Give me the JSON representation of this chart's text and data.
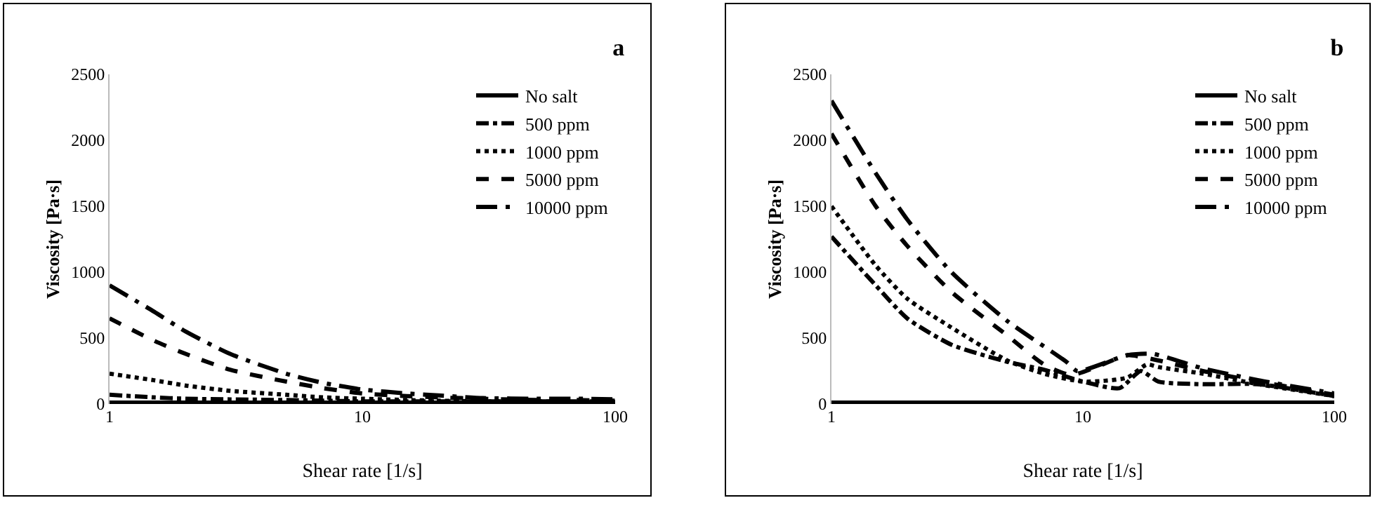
{
  "chart_data": [
    {
      "type": "line",
      "title": "a",
      "xlabel": "Shear rate [1/s]",
      "ylabel": "Viscosity [Pa·s]",
      "log": "x",
      "xlim": [
        1,
        100
      ],
      "xticks": [
        1,
        10,
        100
      ],
      "ylim": [
        0,
        2500
      ],
      "yticks": [
        0,
        500,
        1000,
        1500,
        2000,
        2500
      ],
      "grid": false,
      "legend": "top right",
      "x": [
        1,
        1.5,
        2,
        3,
        5,
        7,
        10,
        15,
        20,
        30,
        50,
        70,
        100
      ],
      "series": [
        {
          "name": "No salt",
          "color": "#000000",
          "line_style": "solid",
          "values": [
            10,
            10,
            10,
            10,
            10,
            10,
            10,
            10,
            10,
            10,
            10,
            10,
            10
          ]
        },
        {
          "name": "500 ppm",
          "color": "#000000",
          "line_style": "dashdot",
          "values": [
            70,
            50,
            40,
            35,
            30,
            25,
            20,
            20,
            20,
            20,
            20,
            20,
            20
          ]
        },
        {
          "name": "1000 ppm",
          "color": "#000000",
          "line_style": "dotted",
          "values": [
            230,
            180,
            140,
            100,
            70,
            50,
            40,
            30,
            25,
            20,
            20,
            15,
            15
          ]
        },
        {
          "name": "5000 ppm",
          "color": "#000000",
          "line_style": "dashed",
          "values": [
            650,
            480,
            380,
            260,
            170,
            120,
            80,
            60,
            50,
            40,
            30,
            30,
            25
          ]
        },
        {
          "name": "10000 ppm",
          "color": "#000000",
          "line_style": "longdashdot",
          "values": [
            900,
            700,
            550,
            380,
            230,
            160,
            110,
            80,
            65,
            45,
            40,
            40,
            35
          ]
        }
      ]
    },
    {
      "type": "line",
      "title": "b",
      "xlabel": "Shear rate [1/s]",
      "ylabel": "Viscosity [Pa·s]",
      "log": "x",
      "xlim": [
        1,
        100
      ],
      "xticks": [
        1,
        10,
        100
      ],
      "ylim": [
        0,
        2500
      ],
      "yticks": [
        0,
        500,
        1000,
        1500,
        2000,
        2500
      ],
      "grid": false,
      "legend": "top right",
      "series": [
        {
          "name": "No salt",
          "color": "#000000",
          "line_style": "solid",
          "x": [
            1,
            100
          ],
          "values": [
            10,
            10
          ]
        },
        {
          "name": "500 ppm",
          "color": "#000000",
          "line_style": "dashdot",
          "x": [
            1,
            1.5,
            2,
            3,
            5,
            7,
            10,
            14,
            17,
            20,
            30,
            50,
            100
          ],
          "values": [
            1270,
            900,
            650,
            450,
            320,
            260,
            170,
            120,
            250,
            170,
            150,
            150,
            60
          ]
        },
        {
          "name": "1000 ppm",
          "color": "#000000",
          "line_style": "dotted",
          "x": [
            1,
            1.5,
            2,
            3,
            5,
            7,
            10,
            15,
            18,
            20,
            30,
            50,
            100
          ],
          "values": [
            1500,
            1050,
            800,
            580,
            330,
            230,
            170,
            200,
            300,
            280,
            230,
            150,
            60
          ]
        },
        {
          "name": "5000 ppm",
          "color": "#000000",
          "line_style": "dashed",
          "x": [
            1,
            1.5,
            2,
            3,
            5,
            7,
            9,
            12,
            15,
            20,
            30,
            50,
            100
          ],
          "values": [
            2050,
            1500,
            1200,
            850,
            520,
            300,
            220,
            300,
            370,
            330,
            250,
            170,
            70
          ]
        },
        {
          "name": "10000 ppm",
          "color": "#000000",
          "line_style": "longdashdot",
          "x": [
            1,
            1.5,
            2,
            3,
            5,
            8.6,
            9.5,
            15,
            19,
            30,
            50,
            100
          ],
          "values": [
            2300,
            1750,
            1400,
            1000,
            630,
            320,
            250,
            370,
            380,
            270,
            180,
            80
          ]
        }
      ]
    }
  ]
}
